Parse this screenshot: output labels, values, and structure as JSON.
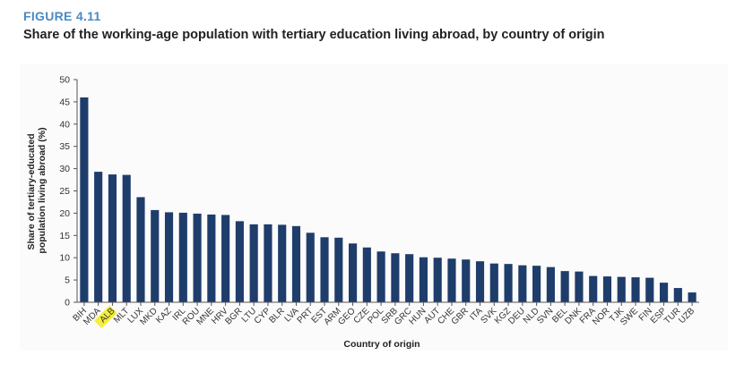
{
  "figure": {
    "number": "FIGURE 4.11",
    "title": "Share of the working-age population with tertiary education living abroad, by country of origin"
  },
  "colors": {
    "bar": "#1f3d6b",
    "figure_number": "#4a8ac2",
    "highlight": "#f5ee3a"
  },
  "chart_data": {
    "type": "bar",
    "title": "Share of the working-age population with tertiary education living abroad, by country of origin",
    "xlabel": "Country of origin",
    "ylabel": "Share of tertiary-educated population living abroad (%)",
    "ylabel_lines": [
      "Share of tertiary-educated",
      "population living abroad (%)"
    ],
    "ylim": [
      0,
      50
    ],
    "yticks": [
      0,
      5,
      10,
      15,
      20,
      25,
      30,
      35,
      40,
      45,
      50
    ],
    "grid": false,
    "highlighted_category": "ALB",
    "categories": [
      "BIH",
      "MDA",
      "ALB",
      "MLT",
      "LUX",
      "MKD",
      "KAZ",
      "IRL",
      "ROU",
      "MNE",
      "HRV",
      "BGR",
      "LTU",
      "CYP",
      "BLR",
      "LVA",
      "PRT",
      "EST",
      "ARM",
      "GEO",
      "CZE",
      "POL",
      "SRB",
      "GRC",
      "HUN",
      "AUT",
      "CHE",
      "GBR",
      "ITA",
      "SVK",
      "KGZ",
      "DEU",
      "NLD",
      "SVN",
      "BEL",
      "DNK",
      "FRA",
      "NOR",
      "TJK",
      "SWE",
      "FIN",
      "ESP",
      "TUR",
      "UZB"
    ],
    "values": [
      46.0,
      29.3,
      28.7,
      28.6,
      23.6,
      20.7,
      20.2,
      20.1,
      19.9,
      19.7,
      19.6,
      18.2,
      17.5,
      17.5,
      17.4,
      17.1,
      15.6,
      14.6,
      14.5,
      13.2,
      12.3,
      11.4,
      11.0,
      10.8,
      10.1,
      10.0,
      9.8,
      9.6,
      9.2,
      8.7,
      8.6,
      8.3,
      8.2,
      7.9,
      7.0,
      6.9,
      5.9,
      5.8,
      5.7,
      5.6,
      5.5,
      4.4,
      3.2,
      2.2
    ]
  }
}
